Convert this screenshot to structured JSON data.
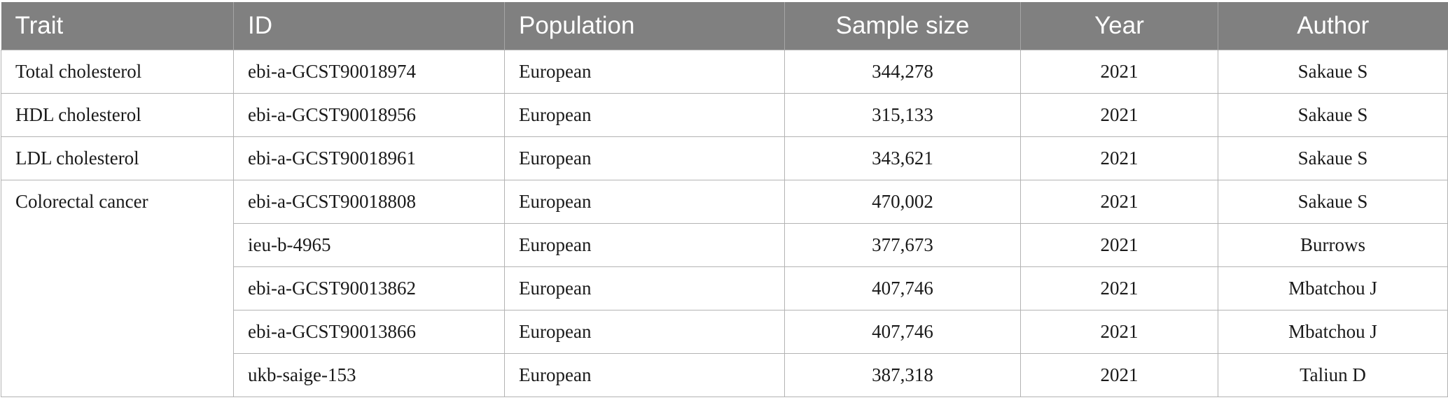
{
  "table": {
    "headers": [
      "Trait",
      "ID",
      "Population",
      "Sample size",
      "Year",
      "Author"
    ],
    "groups": [
      {
        "trait": "Total cholesterol",
        "rows": [
          {
            "id": "ebi-a-GCST90018974",
            "population": "European",
            "sample_size": "344,278",
            "year": "2021",
            "author": "Sakaue S"
          }
        ]
      },
      {
        "trait": "HDL cholesterol",
        "rows": [
          {
            "id": "ebi-a-GCST90018956",
            "population": "European",
            "sample_size": "315,133",
            "year": "2021",
            "author": "Sakaue S"
          }
        ]
      },
      {
        "trait": "LDL cholesterol",
        "rows": [
          {
            "id": "ebi-a-GCST90018961",
            "population": "European",
            "sample_size": "343,621",
            "year": "2021",
            "author": "Sakaue S"
          }
        ]
      },
      {
        "trait": "Colorectal cancer",
        "rows": [
          {
            "id": "ebi-a-GCST90018808",
            "population": "European",
            "sample_size": "470,002",
            "year": "2021",
            "author": "Sakaue S"
          },
          {
            "id": "ieu-b-4965",
            "population": "European",
            "sample_size": "377,673",
            "year": "2021",
            "author": "Burrows"
          },
          {
            "id": "ebi-a-GCST90013862",
            "population": "European",
            "sample_size": "407,746",
            "year": "2021",
            "author": "Mbatchou J"
          },
          {
            "id": "ebi-a-GCST90013866",
            "population": "European",
            "sample_size": "407,746",
            "year": "2021",
            "author": "Mbatchou J"
          },
          {
            "id": "ukb-saige-153",
            "population": "European",
            "sample_size": "387,318",
            "year": "2021",
            "author": "Taliun D"
          }
        ]
      }
    ]
  }
}
